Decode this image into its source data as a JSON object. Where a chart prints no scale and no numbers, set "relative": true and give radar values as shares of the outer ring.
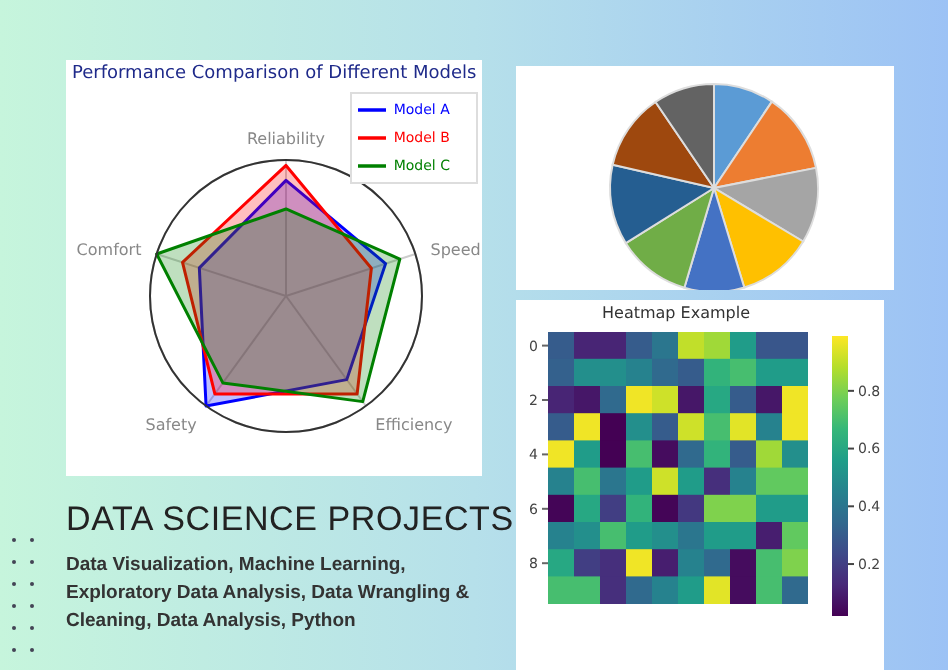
{
  "chart_data": [
    {
      "type": "radar",
      "title": "Performance Comparison of Different Models",
      "categories": [
        "Reliability",
        "Speed",
        "Efficiency",
        "Safety",
        "Comfort"
      ],
      "relative": true,
      "grid": true,
      "legend": "top right",
      "series": [
        {
          "name": "Model A",
          "color": "#0000ff",
          "values": [
            0.85,
            0.77,
            0.76,
            1.0,
            0.67
          ]
        },
        {
          "name": "Model B",
          "color": "#ff0000",
          "values": [
            0.96,
            0.66,
            0.89,
            0.89,
            0.8
          ]
        },
        {
          "name": "Model C",
          "color": "#008000",
          "values": [
            0.64,
            0.88,
            0.96,
            0.79,
            1.0
          ]
        }
      ]
    },
    {
      "type": "pie",
      "values": [
        9.4,
        12.5,
        11.7,
        11.7,
        9.3,
        11.5,
        12.5,
        11.9,
        9.5
      ],
      "colors": [
        "#5b9bd5",
        "#ed7d31",
        "#a5a5a5",
        "#ffc000",
        "#4472c4",
        "#70ad47",
        "#255e91",
        "#9e480e",
        "#636363"
      ]
    },
    {
      "type": "heatmap",
      "title": "Heatmap Example",
      "categories": [
        null,
        null,
        null,
        null,
        null,
        null,
        null,
        null,
        null,
        null
      ],
      "y_categories": [
        "0",
        null,
        "2",
        null,
        "4",
        null,
        "6",
        null,
        "8",
        null
      ],
      "clim": [
        0.02,
        0.99
      ],
      "cticks": [
        0.2,
        0.4,
        0.6,
        0.8
      ],
      "cells": [
        [
          0.3,
          0.12,
          0.12,
          0.3,
          0.4,
          0.9,
          0.85,
          0.55,
          0.28,
          0.28
        ],
        [
          0.32,
          0.5,
          0.5,
          0.45,
          0.35,
          0.3,
          0.65,
          0.7,
          0.55,
          0.55
        ],
        [
          0.12,
          0.08,
          0.35,
          0.97,
          0.92,
          0.08,
          0.6,
          0.3,
          0.08,
          0.97
        ],
        [
          0.3,
          0.97,
          0.02,
          0.5,
          0.3,
          0.92,
          0.7,
          0.95,
          0.45,
          0.97
        ],
        [
          0.97,
          0.55,
          0.02,
          0.7,
          0.05,
          0.35,
          0.65,
          0.3,
          0.85,
          0.5
        ],
        [
          0.45,
          0.7,
          0.4,
          0.55,
          0.92,
          0.55,
          0.15,
          0.45,
          0.75,
          0.75
        ],
        [
          0.03,
          0.6,
          0.2,
          0.65,
          0.03,
          0.18,
          0.8,
          0.8,
          0.55,
          0.55
        ],
        [
          0.45,
          0.5,
          0.7,
          0.55,
          0.5,
          0.4,
          0.55,
          0.55,
          0.1,
          0.75
        ],
        [
          0.6,
          0.2,
          0.15,
          0.97,
          0.1,
          0.45,
          0.35,
          0.05,
          0.7,
          0.8
        ],
        [
          0.7,
          0.7,
          0.15,
          0.35,
          0.45,
          0.55,
          0.95,
          0.05,
          0.7,
          0.35
        ]
      ]
    },
    {
      "type": "other",
      "title": "DATA SCIENCE PROJECTS",
      "subtitle": "Data Visualization, Machine Learning, Exploratory Data Analysis, Data Wrangling & Cleaning, Data Analysis, Python"
    }
  ]
}
